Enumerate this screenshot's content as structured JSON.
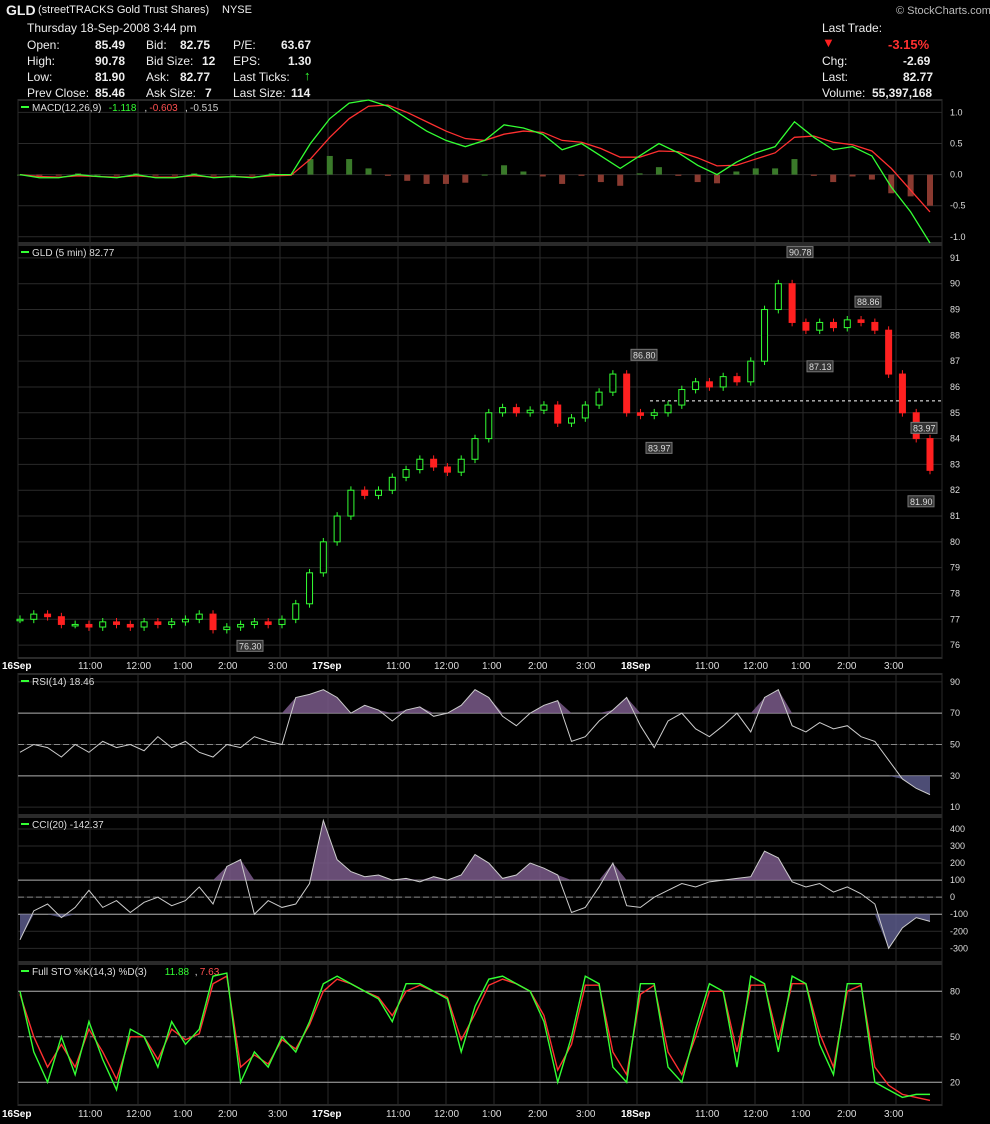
{
  "header": {
    "symbol": "GLD",
    "name": "(streetTRACKS Gold Trust Shares)",
    "exchange": "NYSE",
    "date": "Thursday 18-Sep-2008 3:44 pm",
    "brand": "© StockCharts.com",
    "quote": {
      "open_label": "Open:",
      "open": "85.49",
      "high_label": "High:",
      "high": "90.78",
      "low_label": "Low:",
      "low": "81.90",
      "prev_label": "Prev Close:",
      "prev": "85.46",
      "bid_label": "Bid:",
      "bid": "82.75",
      "bidsize_label": "Bid Size:",
      "bidsize": "12",
      "ask_label": "Ask:",
      "ask": "82.77",
      "asksize_label": "Ask Size:",
      "asksize": "7",
      "pe_label": "P/E:",
      "pe": "63.67",
      "eps_label": "EPS:",
      "eps": "1.30",
      "ticks_label": "Last Ticks:",
      "lastsize_label": "Last Size:",
      "lastsize": "114",
      "lasttrade_label": "Last Trade:",
      "lasttrade": "-3.15%",
      "chg_label": "Chg:",
      "chg": "-2.69",
      "last_label": "Last:",
      "last": "82.77",
      "volume_label": "Volume:",
      "volume": "55,397,168"
    },
    "colors": {
      "up": "#33ff33",
      "down": "#ff2020"
    }
  },
  "chart_data": [
    {
      "type": "line",
      "panel": "MACD",
      "legend": "MACD(12,26,9)",
      "legend_values": [
        "-1.118",
        "-0.603",
        "-0.515"
      ],
      "ylim": [
        -1.1,
        1.2
      ],
      "yticks": [
        "1.0",
        "0.5",
        "0.0",
        "-0.5",
        "-1.0"
      ],
      "series": [
        {
          "name": "MACD",
          "color": "#33ff33",
          "values": [
            0.0,
            -0.05,
            -0.05,
            0.0,
            -0.03,
            -0.05,
            0.0,
            -0.05,
            -0.05,
            0.0,
            -0.05,
            -0.03,
            -0.05,
            0.0,
            0.0,
            0.5,
            0.9,
            1.15,
            1.2,
            1.1,
            0.9,
            0.7,
            0.55,
            0.45,
            0.55,
            0.8,
            0.75,
            0.65,
            0.4,
            0.5,
            0.3,
            0.1,
            0.3,
            0.5,
            0.35,
            0.15,
            0.0,
            0.2,
            0.35,
            0.45,
            0.85,
            0.6,
            0.4,
            0.45,
            0.3,
            -0.2,
            -0.6,
            -1.1
          ]
        },
        {
          "name": "Signal",
          "color": "#ff3030",
          "values": [
            0.0,
            -0.03,
            -0.04,
            -0.02,
            -0.03,
            -0.04,
            -0.02,
            -0.04,
            -0.04,
            -0.02,
            -0.04,
            -0.03,
            -0.04,
            -0.02,
            -0.01,
            0.25,
            0.6,
            0.9,
            1.1,
            1.12,
            1.0,
            0.85,
            0.7,
            0.58,
            0.55,
            0.65,
            0.7,
            0.68,
            0.55,
            0.52,
            0.42,
            0.28,
            0.28,
            0.38,
            0.37,
            0.27,
            0.14,
            0.15,
            0.25,
            0.35,
            0.6,
            0.62,
            0.52,
            0.48,
            0.38,
            0.1,
            -0.25,
            -0.6
          ]
        }
      ]
    },
    {
      "type": "line",
      "panel": "price",
      "legend": "GLD (5 min) 82.77",
      "ylim": [
        75.5,
        91.5
      ],
      "yticks": [
        "91",
        "90",
        "89",
        "88",
        "87",
        "86",
        "85",
        "84",
        "83",
        "82",
        "81",
        "80",
        "79",
        "78",
        "77",
        "76"
      ],
      "x_label_days": [
        "16Sep",
        "17Sep",
        "18Sep"
      ],
      "x_label_times": [
        "11:00",
        "12:00",
        "1:00",
        "2:00",
        "3:00"
      ],
      "annotations": [
        "76.30",
        "86.80",
        "83.97",
        "90.78",
        "87.13",
        "88.86",
        "83.97",
        "81.90"
      ],
      "reference_line": 85.46,
      "series": [
        {
          "name": "GLD",
          "values": [
            77.0,
            77.2,
            77.1,
            76.8,
            76.8,
            76.7,
            76.9,
            76.8,
            76.7,
            76.9,
            76.8,
            76.9,
            77.0,
            77.2,
            76.6,
            76.7,
            76.8,
            76.9,
            76.8,
            77.0,
            77.6,
            78.8,
            80.0,
            81.0,
            82.0,
            81.8,
            82.0,
            82.5,
            82.8,
            83.2,
            82.9,
            82.7,
            83.2,
            84.0,
            85.0,
            85.2,
            85.0,
            85.1,
            85.3,
            84.6,
            84.8,
            85.3,
            85.8,
            86.5,
            85.0,
            84.9,
            85.0,
            85.3,
            85.9,
            86.2,
            86.0,
            86.4,
            86.2,
            87.0,
            89.0,
            90.0,
            88.5,
            88.2,
            88.5,
            88.3,
            88.6,
            88.5,
            88.2,
            86.5,
            85.0,
            84.0,
            82.77
          ]
        }
      ]
    },
    {
      "type": "area",
      "panel": "RSI",
      "legend": "RSI(14) 18.46",
      "ylim": [
        5,
        95
      ],
      "yticks": [
        "90",
        "70",
        "50",
        "30",
        "10"
      ],
      "series": [
        {
          "name": "RSI",
          "values": [
            45,
            50,
            48,
            42,
            50,
            45,
            52,
            48,
            50,
            46,
            55,
            48,
            52,
            45,
            42,
            50,
            48,
            55,
            52,
            50,
            80,
            82,
            85,
            80,
            70,
            75,
            72,
            65,
            72,
            74,
            68,
            70,
            75,
            85,
            80,
            68,
            62,
            70,
            75,
            78,
            52,
            55,
            65,
            72,
            80,
            62,
            48,
            65,
            70,
            60,
            55,
            62,
            70,
            58,
            80,
            85,
            62,
            58,
            64,
            60,
            62,
            55,
            52,
            40,
            28,
            22,
            18
          ]
        }
      ]
    },
    {
      "type": "area",
      "panel": "CCI",
      "legend": "CCI(20) -142.37",
      "ylim": [
        -380,
        470
      ],
      "yticks": [
        "400",
        "300",
        "200",
        "100",
        "0",
        "-100",
        "-200",
        "-300"
      ],
      "series": [
        {
          "name": "CCI",
          "values": [
            -250,
            -80,
            -40,
            -120,
            -60,
            40,
            -60,
            -20,
            -90,
            -30,
            0,
            -50,
            -20,
            60,
            -40,
            180,
            220,
            -100,
            -20,
            -60,
            -40,
            80,
            450,
            220,
            150,
            120,
            130,
            100,
            110,
            90,
            120,
            100,
            130,
            250,
            200,
            110,
            130,
            200,
            170,
            130,
            -90,
            -60,
            60,
            200,
            -50,
            -60,
            0,
            40,
            80,
            60,
            90,
            100,
            110,
            120,
            270,
            230,
            90,
            60,
            80,
            30,
            60,
            20,
            -40,
            -300,
            -180,
            -120,
            -142
          ]
        }
      ]
    },
    {
      "type": "line",
      "panel": "Full STO",
      "legend": "Full STO %K(14,3) %D(3)",
      "legend_values": [
        "11.88",
        "7.63"
      ],
      "ylim": [
        5,
        98
      ],
      "yticks": [
        "80",
        "50",
        "20"
      ],
      "series": [
        {
          "name": "%K",
          "color": "#33ff33",
          "values": [
            80,
            40,
            20,
            50,
            25,
            60,
            35,
            15,
            55,
            50,
            30,
            60,
            45,
            55,
            90,
            92,
            20,
            40,
            30,
            50,
            40,
            60,
            85,
            90,
            85,
            80,
            75,
            60,
            85,
            85,
            80,
            75,
            40,
            70,
            88,
            90,
            85,
            80,
            60,
            20,
            50,
            90,
            85,
            30,
            20,
            85,
            85,
            30,
            20,
            55,
            85,
            80,
            30,
            90,
            85,
            40,
            90,
            85,
            45,
            25,
            85,
            85,
            20,
            15,
            10,
            12,
            12
          ]
        },
        {
          "name": "%D",
          "color": "#ff3030",
          "values": [
            78,
            50,
            30,
            45,
            30,
            55,
            40,
            22,
            50,
            50,
            35,
            55,
            48,
            52,
            85,
            90,
            30,
            38,
            32,
            48,
            42,
            58,
            80,
            88,
            85,
            80,
            76,
            64,
            80,
            84,
            80,
            76,
            48,
            65,
            84,
            88,
            85,
            80,
            64,
            28,
            45,
            84,
            84,
            40,
            25,
            78,
            84,
            40,
            25,
            50,
            80,
            80,
            40,
            84,
            84,
            48,
            85,
            85,
            52,
            30,
            80,
            84,
            30,
            18,
            12,
            10,
            8
          ]
        }
      ]
    }
  ]
}
